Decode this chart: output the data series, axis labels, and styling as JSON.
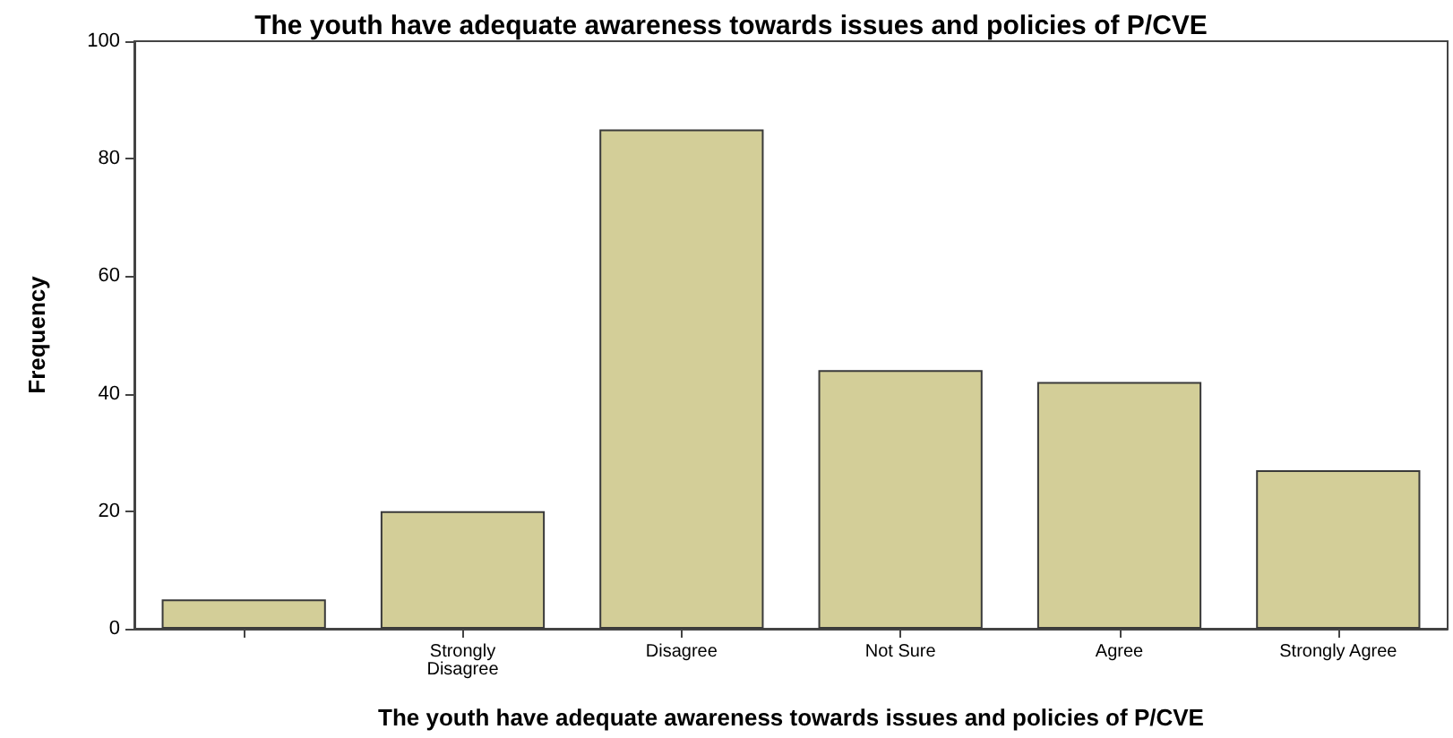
{
  "chart_data": {
    "type": "bar",
    "title": "The youth have adequate awareness towards issues and policies of P/CVE",
    "xlabel": "The youth have adequate awareness towards issues and policies of P/CVE",
    "ylabel": "Frequency",
    "categories": [
      null,
      "Strongly\nDisagree",
      "Disagree",
      "Not Sure",
      "Agree",
      "Strongly Agree"
    ],
    "values": [
      5,
      20,
      85,
      44,
      42,
      27
    ],
    "color": "#d3ce98",
    "ylim": [
      0,
      100
    ],
    "yticks": [
      0,
      20,
      40,
      60,
      80,
      100
    ],
    "grid": false
  }
}
